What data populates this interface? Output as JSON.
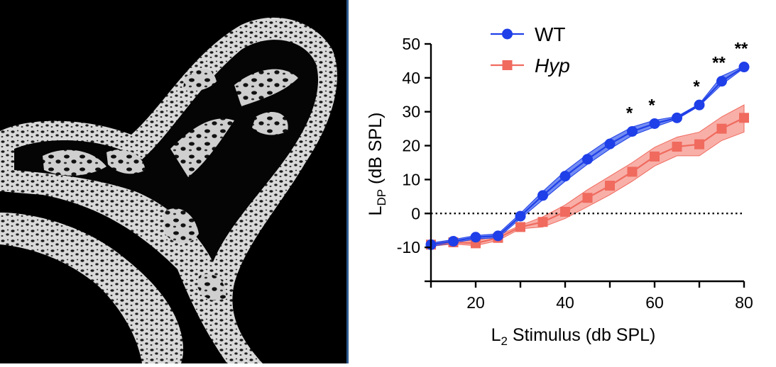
{
  "figure": {
    "left_panel": {
      "content": "micro-CT bone rendering"
    }
  },
  "chart_data": {
    "type": "line",
    "title": "",
    "xlabel_main": "L",
    "xlabel_sub": "2",
    "xlabel_rest": " Stimulus (db SPL)",
    "ylabel_main": "L",
    "ylabel_sub": "DP",
    "ylabel_rest": " (dB SPL)",
    "xlim": [
      10,
      80
    ],
    "ylim": [
      -20,
      50
    ],
    "xticks": [
      20,
      40,
      60,
      80
    ],
    "yticks": [
      -10,
      0,
      10,
      20,
      30,
      40,
      50
    ],
    "x": [
      10,
      15,
      20,
      25,
      30,
      35,
      40,
      45,
      50,
      55,
      60,
      65,
      70,
      75,
      80
    ],
    "reference_line": {
      "y": 0,
      "style": "dotted"
    },
    "legend_position": "top",
    "series": [
      {
        "name": "WT",
        "marker": "circle",
        "color": "#1f3fe8",
        "band_color": "#5a78f0",
        "values": [
          -9.2,
          -8.2,
          -7.0,
          -6.6,
          -0.8,
          5.3,
          11.0,
          16.0,
          20.5,
          24.2,
          26.5,
          28.2,
          32.0,
          39.0,
          43.2
        ],
        "lower": [
          -9.7,
          -8.7,
          -7.5,
          -7.2,
          -1.5,
          4.0,
          9.5,
          14.5,
          19.0,
          23.0,
          25.5,
          27.8,
          31.7,
          38.0,
          42.9
        ],
        "upper": [
          -8.7,
          -7.7,
          -6.5,
          -6.0,
          0.0,
          6.5,
          12.5,
          17.5,
          22.0,
          25.5,
          27.5,
          28.6,
          32.3,
          40.5,
          43.5
        ]
      },
      {
        "name": "Hyp",
        "italic": true,
        "marker": "square",
        "color": "#f06a5e",
        "band_color": "#f7a199",
        "values": [
          -9.2,
          -8.5,
          -8.8,
          -7.2,
          -4.0,
          -2.5,
          0.5,
          4.6,
          8.2,
          12.3,
          16.8,
          19.7,
          20.4,
          25.0,
          28.2
        ],
        "lower": [
          -9.7,
          -9.0,
          -9.5,
          -8.0,
          -4.5,
          -4.0,
          -1.5,
          2.0,
          5.5,
          9.5,
          14.0,
          17.0,
          17.0,
          21.5,
          24.0
        ],
        "upper": [
          -8.7,
          -8.0,
          -8.0,
          -6.5,
          -3.5,
          -1.0,
          2.5,
          7.0,
          11.0,
          15.0,
          19.5,
          22.5,
          24.0,
          28.5,
          32.0
        ]
      }
    ],
    "annotations": [
      {
        "x": 55,
        "y": 24.2,
        "label": "*"
      },
      {
        "x": 60,
        "y": 26.5,
        "label": "*"
      },
      {
        "x": 70,
        "y": 32.0,
        "label": "*"
      },
      {
        "x": 75,
        "y": 39.0,
        "label": "**"
      },
      {
        "x": 80,
        "y": 43.2,
        "label": "**"
      }
    ]
  }
}
